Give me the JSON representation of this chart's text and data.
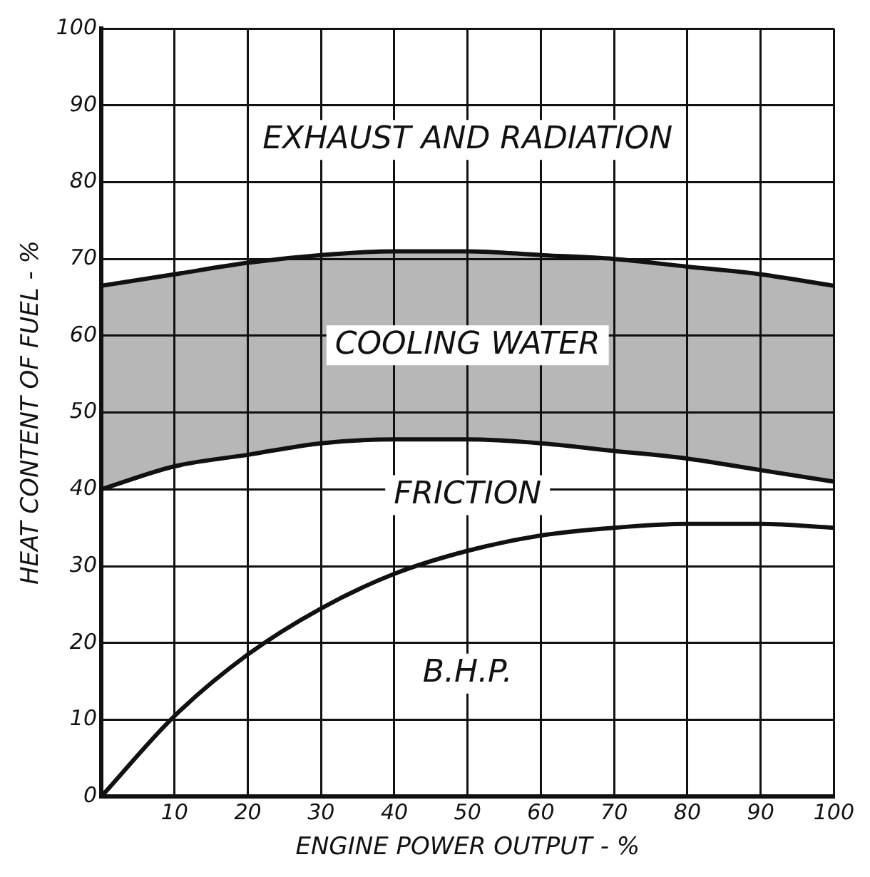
{
  "chart_data": {
    "type": "line",
    "xlabel": "ENGINE POWER OUTPUT - %",
    "ylabel": "HEAT CONTENT OF FUEL - %",
    "x": [
      0,
      10,
      20,
      30,
      40,
      50,
      60,
      70,
      80,
      90,
      100
    ],
    "series": [
      {
        "color": "#111111",
        "values": [
          0,
          10.5,
          18.5,
          24.5,
          29,
          32,
          34,
          35,
          35.5,
          35.5,
          35
        ]
      },
      {
        "color": "#111111",
        "values": [
          40,
          43,
          44.5,
          46,
          46.5,
          46.5,
          46,
          45,
          44,
          42.5,
          41
        ]
      },
      {
        "color": "#111111",
        "values": [
          66.5,
          68,
          69.5,
          70.5,
          71,
          71,
          70.5,
          70,
          69,
          68,
          66.5
        ],
        "lower": [
          40,
          43,
          44.5,
          46,
          46.5,
          46.5,
          46,
          45,
          44,
          42.5,
          41
        ],
        "upper": [
          66.5,
          68,
          69.5,
          70.5,
          71,
          71,
          70.5,
          70,
          69,
          68,
          66.5
        ]
      }
    ],
    "xlim": [
      0,
      100
    ],
    "ylim": [
      0,
      100
    ],
    "xticks": [
      {
        "value": 0,
        "label": null
      },
      10,
      20,
      30,
      40,
      50,
      60,
      70,
      80,
      90,
      100
    ],
    "yticks": [
      0,
      10,
      20,
      30,
      40,
      50,
      60,
      70,
      80,
      90,
      100
    ],
    "grid": true,
    "legend": false,
    "marker": "none",
    "line_style": "solid",
    "annotations": [
      "EXHAUST AND RADIATION",
      "COOLING WATER",
      "FRICTION",
      "B.H.P."
    ]
  }
}
